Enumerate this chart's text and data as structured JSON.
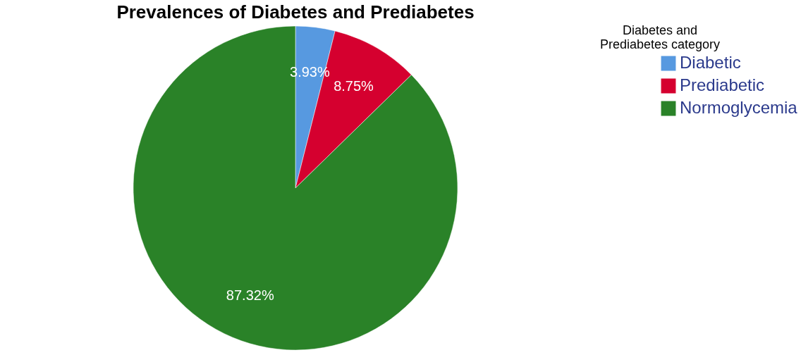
{
  "chart_data": {
    "type": "pie",
    "title": "Prevalences of Diabetes and Prediabetes",
    "legend_title": "Diabetes and Prediabetes category",
    "categories": [
      "Diabetic",
      "Prediabetic",
      "Normoglycemia"
    ],
    "values": [
      3.93,
      8.75,
      87.32
    ],
    "colors": [
      "#5799e0",
      "#d5002f",
      "#2a8228"
    ],
    "value_labels": [
      "3.93%",
      "8.75%",
      "87.32%"
    ],
    "legend": "right"
  }
}
